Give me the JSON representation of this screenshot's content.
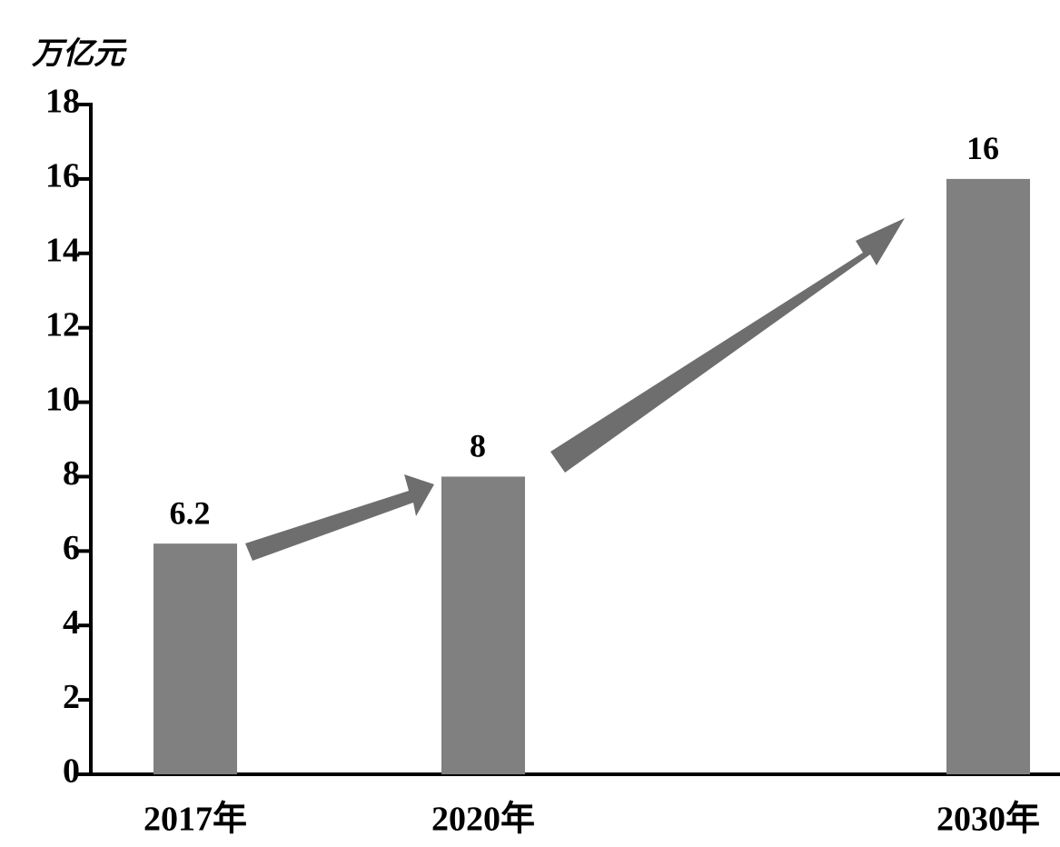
{
  "chart_data": {
    "type": "bar",
    "y_label": "万亿元",
    "categories": [
      "2017年",
      "2020年",
      "2030年"
    ],
    "values": [
      6.2,
      8,
      16
    ],
    "color": "#808080",
    "ylim": [
      0,
      18
    ],
    "yticks": [
      0,
      2,
      4,
      6,
      8,
      10,
      12,
      14,
      16,
      18
    ]
  }
}
